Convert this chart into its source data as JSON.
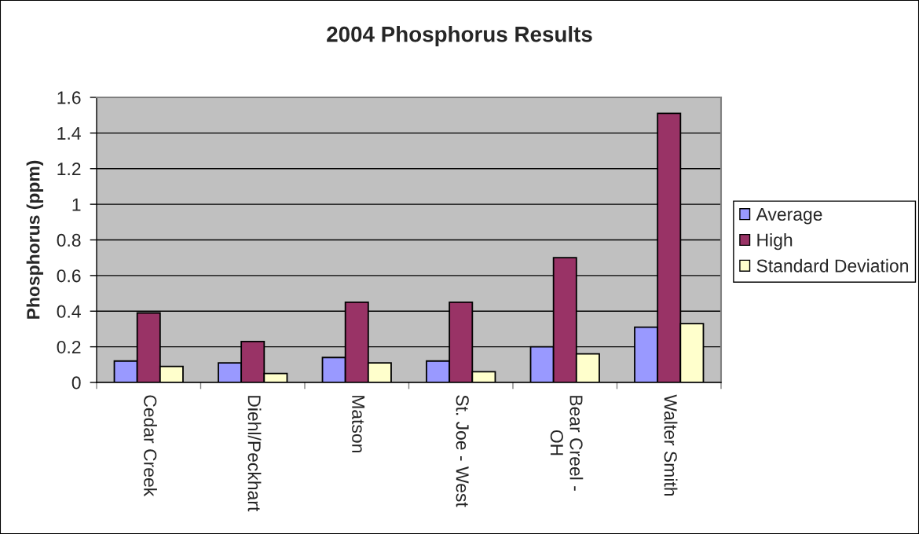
{
  "chart_data": {
    "type": "bar",
    "title": "2004 Phosphorus Results",
    "ylabel": "Phosphorus (ppm)",
    "categories": [
      "Cedar Creek",
      "Diehl/Peckhart",
      "Matson",
      "St. Joe - West",
      "Bear Creel -\nOH",
      "Walter Smith"
    ],
    "series": [
      {
        "name": "Average",
        "color": "#9999ff",
        "values": [
          0.12,
          0.11,
          0.14,
          0.12,
          0.2,
          0.31
        ]
      },
      {
        "name": "High",
        "color": "#993366",
        "values": [
          0.39,
          0.23,
          0.45,
          0.45,
          0.7,
          1.51
        ]
      },
      {
        "name": "Standard Deviation",
        "color": "#ffffcc",
        "values": [
          0.09,
          0.05,
          0.11,
          0.06,
          0.16,
          0.33
        ]
      }
    ],
    "ylim": [
      0,
      1.6
    ],
    "yticks": [
      0,
      0.2,
      0.4,
      0.6,
      0.8,
      1,
      1.2,
      1.4,
      1.6
    ],
    "grid": "y",
    "legend": "right"
  }
}
